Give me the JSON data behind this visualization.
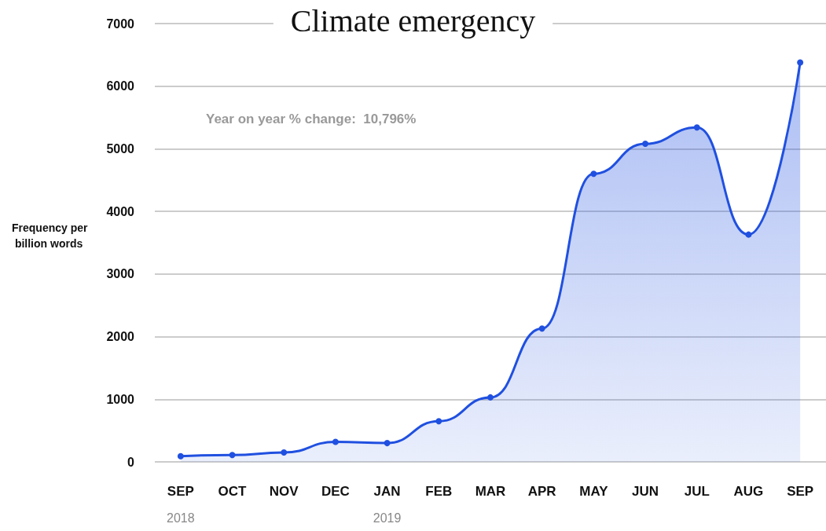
{
  "chart_data": {
    "type": "area",
    "title": "Climate emergency",
    "ylabel": "Frequency per billion words",
    "categories": [
      "SEP\n2018",
      "OCT",
      "NOV",
      "DEC",
      "JAN\n2019",
      "FEB",
      "MAR",
      "APR",
      "MAY",
      "JUN",
      "JUL",
      "AUG",
      "SEP"
    ],
    "series": [
      {
        "color": "#2050e0",
        "values": [
          90,
          110,
          150,
          320,
          300,
          650,
          1030,
          2130,
          4600,
          5080,
          5340,
          3630,
          6380
        ]
      }
    ],
    "ylim": [
      0,
      7000
    ],
    "yticks": [
      0,
      1000,
      2000,
      3000,
      4000,
      5000,
      6000,
      7000
    ],
    "annotations": [
      "Year on year % change:  10,796%"
    ],
    "grid": "y",
    "marker": "circle",
    "line_style": "solid"
  }
}
